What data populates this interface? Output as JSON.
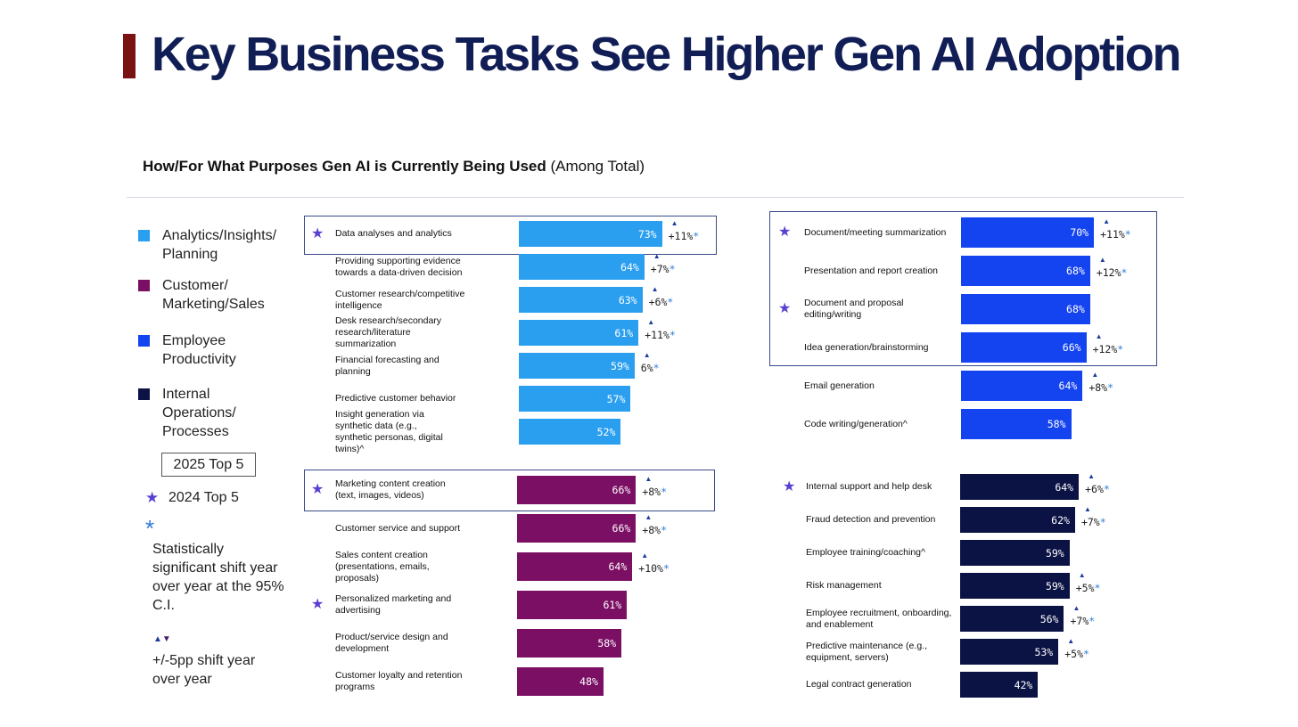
{
  "title": "Key Business Tasks See Higher Gen AI Adoption",
  "subtitle": {
    "bold": "How/For What Purposes Gen AI is Currently Being Used",
    "normal": " (Among Total)"
  },
  "colors": {
    "analytics": "#2a9ff0",
    "customer": "#7b0f64",
    "employee": "#1444f0",
    "internal": "#0b1244",
    "title": "#111d55",
    "accent_bar": "#7a1212"
  },
  "legend": {
    "categories": [
      {
        "key": "analytics",
        "label": "Analytics/Insights/ Planning"
      },
      {
        "key": "customer",
        "label": "Customer/ Marketing/Sales"
      },
      {
        "key": "employee",
        "label": "Employee Productivity"
      },
      {
        "key": "internal",
        "label": "Internal Operations/ Processes"
      }
    ],
    "top5_2025": "2025 Top 5",
    "top5_2024": "2024 Top 5",
    "sig_shift": "Statistically significant shift year over year at the 95% C.I.",
    "pp_shift": "+/-5pp shift year over year"
  },
  "chart_data": {
    "type": "bar",
    "orientation": "horizontal",
    "unit": "%",
    "title": "How/For What Purposes Gen AI is Currently Being Used (Among Total)",
    "panels": [
      {
        "category": "Analytics/Insights/Planning",
        "color_key": "analytics",
        "top5_2025_count": 1,
        "items": [
          {
            "label": "Data analyses and analytics",
            "value": 73,
            "change": "+11%",
            "change_up": true,
            "significant": true,
            "top2024": true
          },
          {
            "label": "Providing supporting evidence towards a data-driven decision",
            "value": 64,
            "change": "+7%",
            "change_up": true,
            "significant": true,
            "top2024": false
          },
          {
            "label": "Customer research/competitive intelligence",
            "value": 63,
            "change": "+6%",
            "change_up": true,
            "significant": true,
            "top2024": false
          },
          {
            "label": "Desk research/secondary research/literature summarization",
            "value": 61,
            "change": "+11%",
            "change_up": true,
            "significant": true,
            "top2024": false
          },
          {
            "label": "Financial forecasting and planning",
            "value": 59,
            "change": "6%",
            "change_up": true,
            "significant": true,
            "top2024": false
          },
          {
            "label": "Predictive customer behavior",
            "value": 57,
            "change": null,
            "change_up": false,
            "significant": false,
            "top2024": false
          },
          {
            "label": "Insight generation via synthetic data (e.g., synthetic personas, digital twins)^",
            "value": 52,
            "change": null,
            "change_up": false,
            "significant": false,
            "top2024": false
          }
        ]
      },
      {
        "category": "Customer/Marketing/Sales",
        "color_key": "customer",
        "top5_2025_count": 1,
        "items": [
          {
            "label": "Marketing content creation (text, images, videos)",
            "value": 66,
            "change": "+8%",
            "change_up": true,
            "significant": true,
            "top2024": true
          },
          {
            "label": "Customer service and support",
            "value": 66,
            "change": "+8%",
            "change_up": true,
            "significant": true,
            "top2024": false
          },
          {
            "label": "Sales content creation (presentations, emails, proposals)",
            "value": 64,
            "change": "+10%",
            "change_up": true,
            "significant": true,
            "top2024": false
          },
          {
            "label": "Personalized marketing and advertising",
            "value": 61,
            "change": null,
            "change_up": false,
            "significant": false,
            "top2024": true
          },
          {
            "label": "Product/service design and development",
            "value": 58,
            "change": null,
            "change_up": false,
            "significant": false,
            "top2024": false
          },
          {
            "label": "Customer loyalty and retention programs",
            "value": 48,
            "change": null,
            "change_up": false,
            "significant": false,
            "top2024": false
          }
        ]
      },
      {
        "category": "Employee Productivity",
        "color_key": "employee",
        "top5_2025_count": 4,
        "items": [
          {
            "label": "Document/meeting summarization",
            "value": 70,
            "change": "+11%",
            "change_up": true,
            "significant": true,
            "top2024": true
          },
          {
            "label": "Presentation and report creation",
            "value": 68,
            "change": "+12%",
            "change_up": true,
            "significant": true,
            "top2024": false
          },
          {
            "label": "Document and proposal editing/writing",
            "value": 68,
            "change": null,
            "change_up": false,
            "significant": false,
            "top2024": true
          },
          {
            "label": "Idea generation/brainstorming",
            "value": 66,
            "change": "+12%",
            "change_up": true,
            "significant": true,
            "top2024": false
          },
          {
            "label": "Email generation",
            "value": 64,
            "change": "+8%",
            "change_up": true,
            "significant": true,
            "top2024": false
          },
          {
            "label": "Code writing/generation^",
            "value": 58,
            "change": null,
            "change_up": false,
            "significant": false,
            "top2024": false
          }
        ]
      },
      {
        "category": "Internal Operations/Processes",
        "color_key": "internal",
        "top5_2025_count": 0,
        "items": [
          {
            "label": "Internal support and help desk",
            "value": 64,
            "change": "+6%",
            "change_up": true,
            "significant": true,
            "top2024": true
          },
          {
            "label": "Fraud detection and prevention",
            "value": 62,
            "change": "+7%",
            "change_up": true,
            "significant": true,
            "top2024": false
          },
          {
            "label": "Employee training/coaching^",
            "value": 59,
            "change": null,
            "change_up": false,
            "significant": false,
            "top2024": false
          },
          {
            "label": "Risk management",
            "value": 59,
            "change": "+5%",
            "change_up": true,
            "significant": true,
            "top2024": false
          },
          {
            "label": "Employee recruitment, onboarding, and enablement",
            "value": 56,
            "change": "+7%",
            "change_up": true,
            "significant": true,
            "top2024": false
          },
          {
            "label": "Predictive maintenance (e.g., equipment, servers)",
            "value": 53,
            "change": "+5%",
            "change_up": true,
            "significant": true,
            "top2024": false
          },
          {
            "label": "Legal contract generation",
            "value": 42,
            "change": null,
            "change_up": false,
            "significant": false,
            "top2024": false
          }
        ]
      }
    ]
  }
}
